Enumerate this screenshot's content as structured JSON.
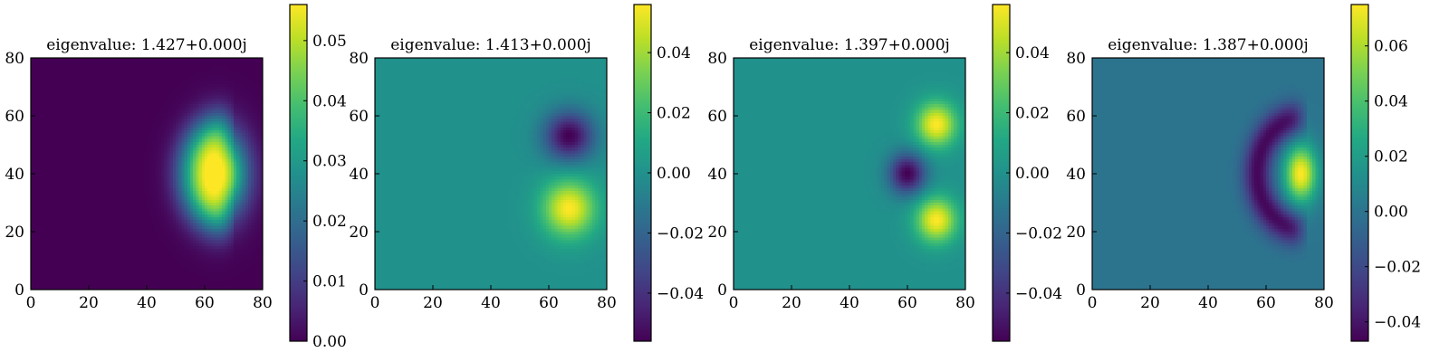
{
  "chart_data": [
    {
      "type": "heatmap",
      "title": "eigenvalue: 1.427+0.000j",
      "xlim": [
        0,
        80
      ],
      "ylim": [
        0,
        80
      ],
      "xticks": [
        "0",
        "20",
        "40",
        "60",
        "80"
      ],
      "yticks": [
        "0",
        "20",
        "40",
        "60",
        "80"
      ],
      "colorbar": {
        "min": 0.0,
        "max": 0.056,
        "ticks": [
          0.0,
          0.01,
          0.02,
          0.03,
          0.04,
          0.05
        ],
        "tick_labels": [
          "0.00",
          "0.01",
          "0.02",
          "0.03",
          "0.04",
          "0.05"
        ]
      },
      "colormap": "viridis",
      "background_value": 0.0,
      "features": [
        {
          "shape": "gaussian",
          "x": 65,
          "y": 40,
          "sx": 6.5,
          "sy": 10,
          "amplitude": 0.056
        },
        {
          "shape": "crescent",
          "cx": 68,
          "cy": 40,
          "r": 12,
          "width": 5,
          "amplitude": 0.02,
          "sy": 1.2
        }
      ]
    },
    {
      "type": "heatmap",
      "title": "eigenvalue: 1.413+0.000j",
      "xlim": [
        0,
        80
      ],
      "ylim": [
        0,
        80
      ],
      "xticks": [
        "0",
        "20",
        "40",
        "60",
        "80"
      ],
      "yticks": [
        "0",
        "20",
        "40",
        "60",
        "80"
      ],
      "colorbar": {
        "min": -0.056,
        "max": 0.056,
        "ticks": [
          -0.04,
          -0.02,
          0.0,
          0.02,
          0.04
        ],
        "tick_labels": [
          "−0.04",
          "−0.02",
          "0.00",
          "0.02",
          "0.04"
        ]
      },
      "colormap": "viridis",
      "background_value": 0.0,
      "features": [
        {
          "shape": "gaussian",
          "x": 67,
          "y": 28,
          "sx": 6.5,
          "sy": 7,
          "amplitude": 0.056
        },
        {
          "shape": "gaussian",
          "x": 67,
          "y": 53,
          "sx": 6,
          "sy": 6,
          "amplitude": -0.056
        }
      ]
    },
    {
      "type": "heatmap",
      "title": "eigenvalue: 1.397+0.000j",
      "xlim": [
        0,
        80
      ],
      "ylim": [
        0,
        80
      ],
      "xticks": [
        "0",
        "20",
        "40",
        "60",
        "80"
      ],
      "yticks": [
        "0",
        "20",
        "40",
        "60",
        "80"
      ],
      "colorbar": {
        "min": -0.056,
        "max": 0.056,
        "ticks": [
          -0.04,
          -0.02,
          0.0,
          0.02,
          0.04
        ],
        "tick_labels": [
          "−0.04",
          "−0.02",
          "0.00",
          "0.02",
          "0.04"
        ]
      },
      "colormap": "viridis",
      "background_value": 0.0,
      "features": [
        {
          "shape": "gaussian",
          "x": 70,
          "y": 57,
          "sx": 5,
          "sy": 5.5,
          "amplitude": 0.056
        },
        {
          "shape": "gaussian",
          "x": 70,
          "y": 24,
          "sx": 5,
          "sy": 5.5,
          "amplitude": 0.056
        },
        {
          "shape": "gaussian",
          "x": 60,
          "y": 40,
          "sx": 4.5,
          "sy": 5,
          "amplitude": -0.056
        }
      ]
    },
    {
      "type": "heatmap",
      "title": "eigenvalue: 1.387+0.000j",
      "xlim": [
        0,
        80
      ],
      "ylim": [
        0,
        80
      ],
      "xticks": [
        "0",
        "20",
        "40",
        "60",
        "80"
      ],
      "yticks": [
        "0",
        "20",
        "40",
        "60",
        "80"
      ],
      "colorbar": {
        "min": -0.047,
        "max": 0.075,
        "ticks": [
          -0.04,
          -0.02,
          0.0,
          0.02,
          0.04,
          0.06
        ],
        "tick_labels": [
          "−0.04",
          "−0.02",
          "0.00",
          "0.02",
          "0.04",
          "0.06"
        ]
      },
      "colormap": "viridis",
      "background_value": 0.0,
      "features": [
        {
          "shape": "gaussian",
          "x": 72,
          "y": 40,
          "sx": 4,
          "sy": 7,
          "amplitude": 0.075
        },
        {
          "shape": "crescent",
          "cx": 72,
          "cy": 40,
          "r": 15,
          "width": 3.5,
          "amplitude": -0.045,
          "sy": 1.25
        }
      ]
    }
  ]
}
